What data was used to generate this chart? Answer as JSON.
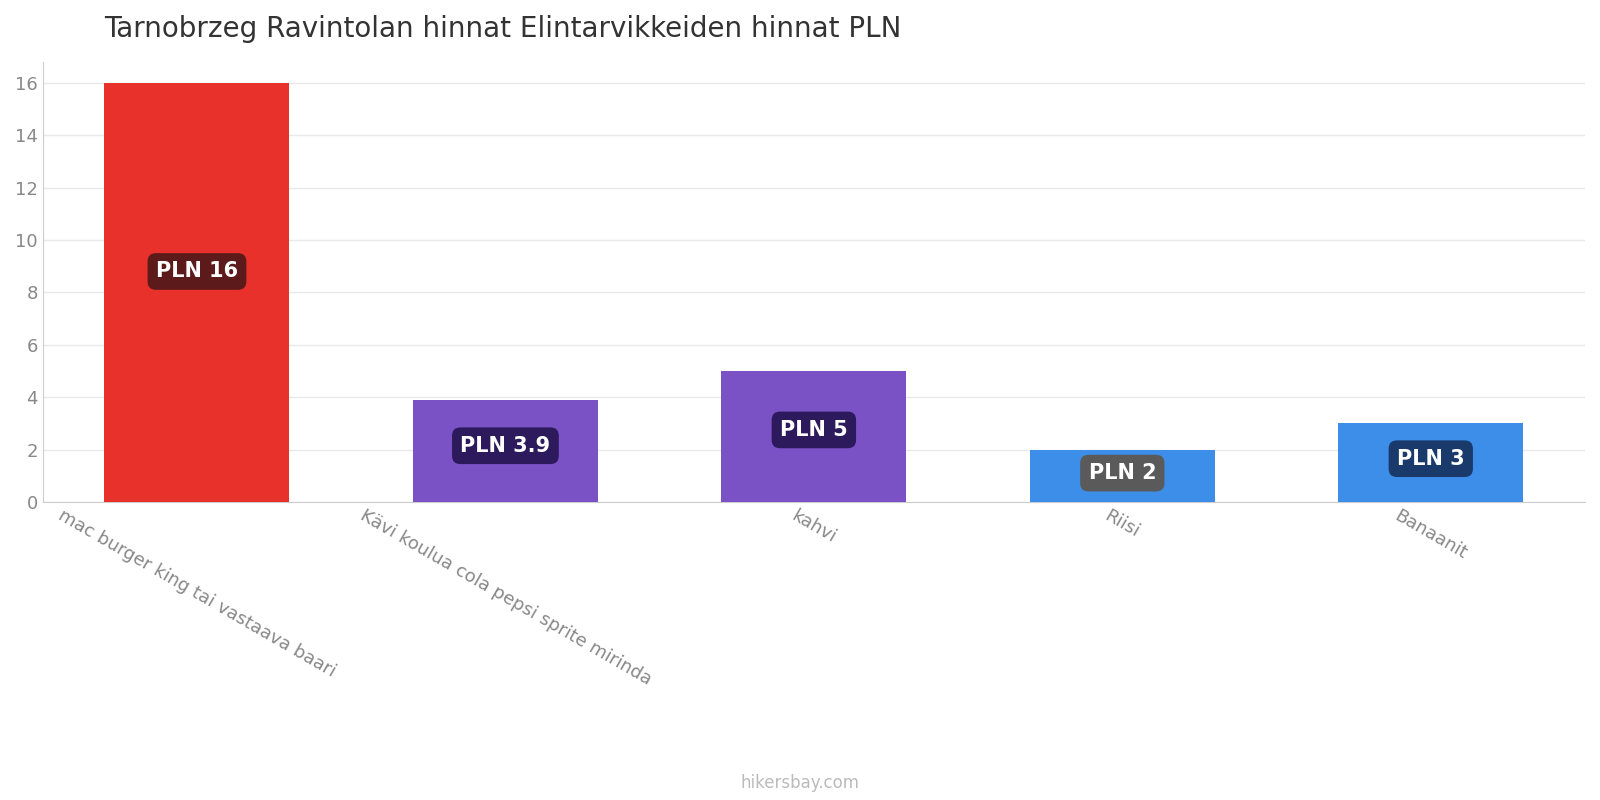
{
  "title": "Tarnobrzeg Ravintolan hinnat Elintarvikkeiden hinnat PLN",
  "categories": [
    "mac burger king tai vastaava baari",
    "Kävi koulua cola pepsi sprite mirinda",
    "kahvi",
    "Riisi",
    "Banaanit"
  ],
  "values": [
    16,
    3.9,
    5,
    2,
    3
  ],
  "bar_colors": [
    "#e8312a",
    "#7b52c6",
    "#7b52c6",
    "#3d8ee8",
    "#3d8ee8"
  ],
  "label_texts": [
    "PLN 16",
    "PLN 3.9",
    "PLN 5",
    "PLN 2",
    "PLN 3"
  ],
  "label_bg_colors": [
    "#5c1a1a",
    "#2d1a5c",
    "#2d1a5c",
    "#5a5a5a",
    "#1a3a6c"
  ],
  "ylim": [
    0,
    16.8
  ],
  "yticks": [
    0,
    2,
    4,
    6,
    8,
    10,
    12,
    14,
    16
  ],
  "background_color": "#ffffff",
  "grid_color": "#e8e8e8",
  "title_fontsize": 20,
  "tick_fontsize": 13,
  "label_fontsize": 15,
  "xlabel_rotation": -30,
  "watermark": "hikersbay.com"
}
